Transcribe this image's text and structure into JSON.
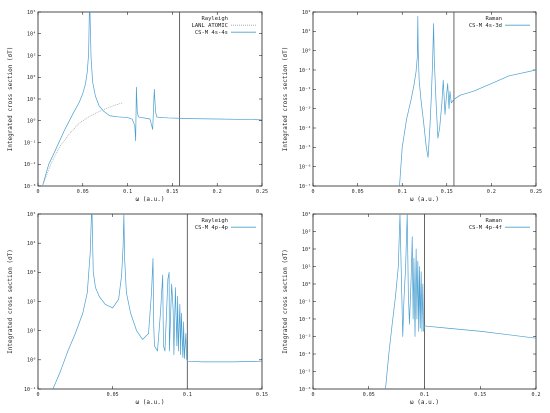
{
  "colors": {
    "cs_m": "#4a9fd1",
    "lanl": "#9aa0a6",
    "threshold": "#555555"
  },
  "chart_data": [
    {
      "type": "line",
      "panel": "top-left",
      "legend": {
        "title": "Rayleigh",
        "entries": [
          "LANL ATOMIC",
          "CS-M 4s-4s"
        ],
        "placement": "top-right"
      },
      "xlabel": "ω (a.u.)",
      "ylabel": "Integrated cross section (σT)",
      "xlim": [
        0,
        0.25
      ],
      "ylim_log10": [
        -3,
        5
      ],
      "xticks": [
        {
          "v": 0,
          "t": "0"
        },
        {
          "v": 0.05,
          "t": "0.05"
        },
        {
          "v": 0.1,
          "t": "0.1"
        },
        {
          "v": 0.15,
          "t": "0.15"
        },
        {
          "v": 0.2,
          "t": "0.2"
        },
        {
          "v": 0.25,
          "t": "0.25"
        }
      ],
      "yticks": [
        {
          "e": -3,
          "t": "10⁻³"
        },
        {
          "e": -2,
          "t": "10⁻²"
        },
        {
          "e": -1,
          "t": "10⁻¹"
        },
        {
          "e": 0,
          "t": "10⁰"
        },
        {
          "e": 1,
          "t": "10¹"
        },
        {
          "e": 2,
          "t": "10²"
        },
        {
          "e": 3,
          "t": "10³"
        },
        {
          "e": 4,
          "t": "10⁴"
        },
        {
          "e": 5,
          "t": "10⁵"
        }
      ],
      "threshold_x": 0.158,
      "series": [
        {
          "name": "CS-M 4s-4s",
          "style": "solid",
          "x": [
            0.005,
            0.012,
            0.02,
            0.03,
            0.04,
            0.046,
            0.05,
            0.053,
            0.055,
            0.0565,
            0.0573,
            0.058,
            0.0592,
            0.061,
            0.064,
            0.068,
            0.073,
            0.08,
            0.09,
            0.1,
            0.105,
            0.108,
            0.109,
            0.1098,
            0.1108,
            0.112,
            0.116,
            0.12,
            0.125,
            0.128,
            0.1298,
            0.1312,
            0.1325,
            0.135,
            0.14,
            0.145,
            0.15,
            0.158,
            0.17,
            0.2,
            0.23,
            0.25
          ],
          "y": [
            0.001,
            0.01,
            0.05,
            0.4,
            2.5,
            7,
            18,
            50,
            180,
            1200,
            100000,
            100000,
            800,
            60,
            14,
            5,
            2.8,
            1.7,
            1.5,
            1.4,
            1.2,
            0.6,
            0.12,
            35,
            2.5,
            1.5,
            1.4,
            1.3,
            1.2,
            0.4,
            28,
            2.6,
            1.5,
            1.45,
            1.4,
            1.35,
            1.33,
            1.3,
            1.25,
            1.2,
            1.15,
            1.1
          ]
        },
        {
          "name": "LANL ATOMIC",
          "style": "dotted",
          "x": [
            0.005,
            0.015,
            0.025,
            0.035,
            0.045,
            0.055,
            0.065,
            0.075,
            0.085,
            0.095
          ],
          "y": [
            0.001,
            0.012,
            0.07,
            0.25,
            0.7,
            1.4,
            2.3,
            3.5,
            5,
            6.8
          ]
        }
      ]
    },
    {
      "type": "line",
      "panel": "top-right",
      "legend": {
        "title": "Raman",
        "entries": [
          "CS-M 4s-3d"
        ],
        "placement": "top-right"
      },
      "xlabel": "ω (a.u.)",
      "ylabel": "Integrated cross section (σT)",
      "xlim": [
        0,
        0.25
      ],
      "ylim_log10": [
        -7,
        2
      ],
      "xticks": [
        {
          "v": 0,
          "t": "0"
        },
        {
          "v": 0.05,
          "t": "0.05"
        },
        {
          "v": 0.1,
          "t": "0.1"
        },
        {
          "v": 0.15,
          "t": "0.15"
        },
        {
          "v": 0.2,
          "t": "0.2"
        },
        {
          "v": 0.25,
          "t": "0.25"
        }
      ],
      "yticks": [
        {
          "e": -7,
          "t": "10⁻⁷"
        },
        {
          "e": -6,
          "t": "10⁻⁶"
        },
        {
          "e": -5,
          "t": "10⁻⁵"
        },
        {
          "e": -4,
          "t": "10⁻⁴"
        },
        {
          "e": -3,
          "t": "10⁻³"
        },
        {
          "e": -2,
          "t": "10⁻²"
        },
        {
          "e": -1,
          "t": "10⁻¹"
        },
        {
          "e": 0,
          "t": "10⁰"
        },
        {
          "e": 1,
          "t": "10¹"
        },
        {
          "e": 2,
          "t": "10²"
        }
      ],
      "threshold_x": 0.158,
      "series": [
        {
          "name": "CS-M 4s-3d",
          "style": "solid",
          "x": [
            0.097,
            0.1,
            0.105,
            0.11,
            0.113,
            0.1155,
            0.117,
            0.1175,
            0.118,
            0.119,
            0.121,
            0.124,
            0.127,
            0.129,
            0.131,
            0.1325,
            0.134,
            0.1352,
            0.136,
            0.138,
            0.14,
            0.142,
            0.1445,
            0.146,
            0.148,
            0.1495,
            0.151,
            0.1525,
            0.1535,
            0.155,
            0.158,
            0.165,
            0.18,
            0.2,
            0.22,
            0.25
          ],
          "y": [
            1e-07,
            1e-05,
            0.0003,
            0.003,
            0.015,
            0.08,
            0.5,
            60,
            0.8,
            0.03,
            0.003,
            0.0002,
            1e-05,
            3e-06,
            0.0001,
            0.003,
            0.2,
            25,
            0.3,
            0.002,
            3e-05,
            0.0001,
            0.002,
            0.03,
            0.0005,
            0.004,
            0.02,
            0.001,
            0.008,
            0.002,
            0.003,
            0.005,
            0.008,
            0.02,
            0.05,
            0.1
          ]
        }
      ]
    },
    {
      "type": "line",
      "panel": "bottom-left",
      "legend": {
        "title": "Rayleigh",
        "entries": [
          "CS-M 4p-4p"
        ],
        "placement": "top-right"
      },
      "xlabel": "ω (a.u.)",
      "ylabel": "Integrated cross section (σT)",
      "xlim": [
        0,
        0.15
      ],
      "ylim_log10": [
        -1,
        5
      ],
      "xticks": [
        {
          "v": 0,
          "t": "0"
        },
        {
          "v": 0.05,
          "t": "0.05"
        },
        {
          "v": 0.1,
          "t": "0.1"
        },
        {
          "v": 0.15,
          "t": "0.15"
        }
      ],
      "yticks": [
        {
          "e": -1,
          "t": "10⁻¹"
        },
        {
          "e": 0,
          "t": "10⁰"
        },
        {
          "e": 1,
          "t": "10¹"
        },
        {
          "e": 2,
          "t": "10²"
        },
        {
          "e": 3,
          "t": "10³"
        },
        {
          "e": 4,
          "t": "10⁴"
        },
        {
          "e": 5,
          "t": "10⁵"
        }
      ],
      "threshold_x": 0.1,
      "series": [
        {
          "name": "CS-M 4p-4p",
          "style": "solid",
          "x": [
            0.01,
            0.015,
            0.02,
            0.025,
            0.03,
            0.033,
            0.035,
            0.0358,
            0.0362,
            0.037,
            0.0385,
            0.041,
            0.045,
            0.05,
            0.054,
            0.056,
            0.057,
            0.0575,
            0.058,
            0.0592,
            0.062,
            0.066,
            0.07,
            0.074,
            0.076,
            0.077,
            0.0775,
            0.078,
            0.08,
            0.082,
            0.0835,
            0.084,
            0.085,
            0.087,
            0.0878,
            0.088,
            0.0895,
            0.0905,
            0.091,
            0.092,
            0.093,
            0.0935,
            0.094,
            0.095,
            0.0955,
            0.096,
            0.097,
            0.0975,
            0.098,
            0.099,
            0.0995,
            0.1,
            0.11,
            0.13,
            0.15
          ],
          "y": [
            0.1,
            0.4,
            2,
            8,
            40,
            200,
            5000,
            100000,
            100000,
            1000,
            300,
            150,
            80,
            60,
            120,
            800,
            8000,
            100000,
            3000,
            200,
            40,
            10,
            5,
            8,
            200,
            3000,
            15,
            3,
            2,
            40,
            800,
            3,
            2,
            600,
            1000,
            2,
            400,
            50,
            1.5,
            300,
            3,
            150,
            2,
            80,
            1.5,
            40,
            1.2,
            20,
            1.1,
            8,
            1.1,
            0.9,
            0.85,
            0.85,
            0.9
          ]
        }
      ]
    },
    {
      "type": "line",
      "panel": "bottom-right",
      "legend": {
        "title": "Raman",
        "entries": [
          "CS-M 4p-4f"
        ],
        "placement": "top-right"
      },
      "xlabel": "ω (a.u.)",
      "ylabel": "Integrated cross section (σT)",
      "xlim": [
        0,
        0.2
      ],
      "ylim_log10": [
        -6,
        4
      ],
      "xticks": [
        {
          "v": 0,
          "t": "0"
        },
        {
          "v": 0.05,
          "t": "0.05"
        },
        {
          "v": 0.1,
          "t": "0.1"
        },
        {
          "v": 0.15,
          "t": "0.15"
        },
        {
          "v": 0.2,
          "t": "0.2"
        }
      ],
      "yticks": [
        {
          "e": -6,
          "t": "10⁻⁶"
        },
        {
          "e": -5,
          "t": "10⁻⁵"
        },
        {
          "e": -4,
          "t": "10⁻⁴"
        },
        {
          "e": -3,
          "t": "10⁻³"
        },
        {
          "e": -2,
          "t": "10⁻²"
        },
        {
          "e": -1,
          "t": "10⁻¹"
        },
        {
          "e": 0,
          "t": "10⁰"
        },
        {
          "e": 1,
          "t": "10¹"
        },
        {
          "e": 2,
          "t": "10²"
        },
        {
          "e": 3,
          "t": "10³"
        },
        {
          "e": 4,
          "t": "10⁴"
        }
      ],
      "threshold_x": 0.1,
      "series": [
        {
          "name": "CS-M 4p-4f",
          "style": "solid",
          "x": [
            0.065,
            0.068,
            0.071,
            0.074,
            0.0765,
            0.078,
            0.0795,
            0.0805,
            0.0815,
            0.083,
            0.0845,
            0.0855,
            0.0865,
            0.088,
            0.089,
            0.0898,
            0.0905,
            0.0915,
            0.0925,
            0.0932,
            0.094,
            0.0948,
            0.0955,
            0.0962,
            0.097,
            0.0977,
            0.0985,
            0.0992,
            0.1,
            0.12,
            0.15,
            0.2
          ],
          "y": [
            1e-06,
            0.0001,
            0.005,
            0.2,
            10,
            10000,
            0.5,
            0.001,
            0.1,
            8,
            10000,
            0.3,
            0.005,
            2,
            500,
            0.01,
            30,
            0.001,
            100,
            0.01,
            20,
            0.002,
            10,
            0.003,
            5,
            0.002,
            1,
            0.002,
            0.004,
            0.003,
            0.002,
            0.0008
          ]
        }
      ]
    }
  ]
}
